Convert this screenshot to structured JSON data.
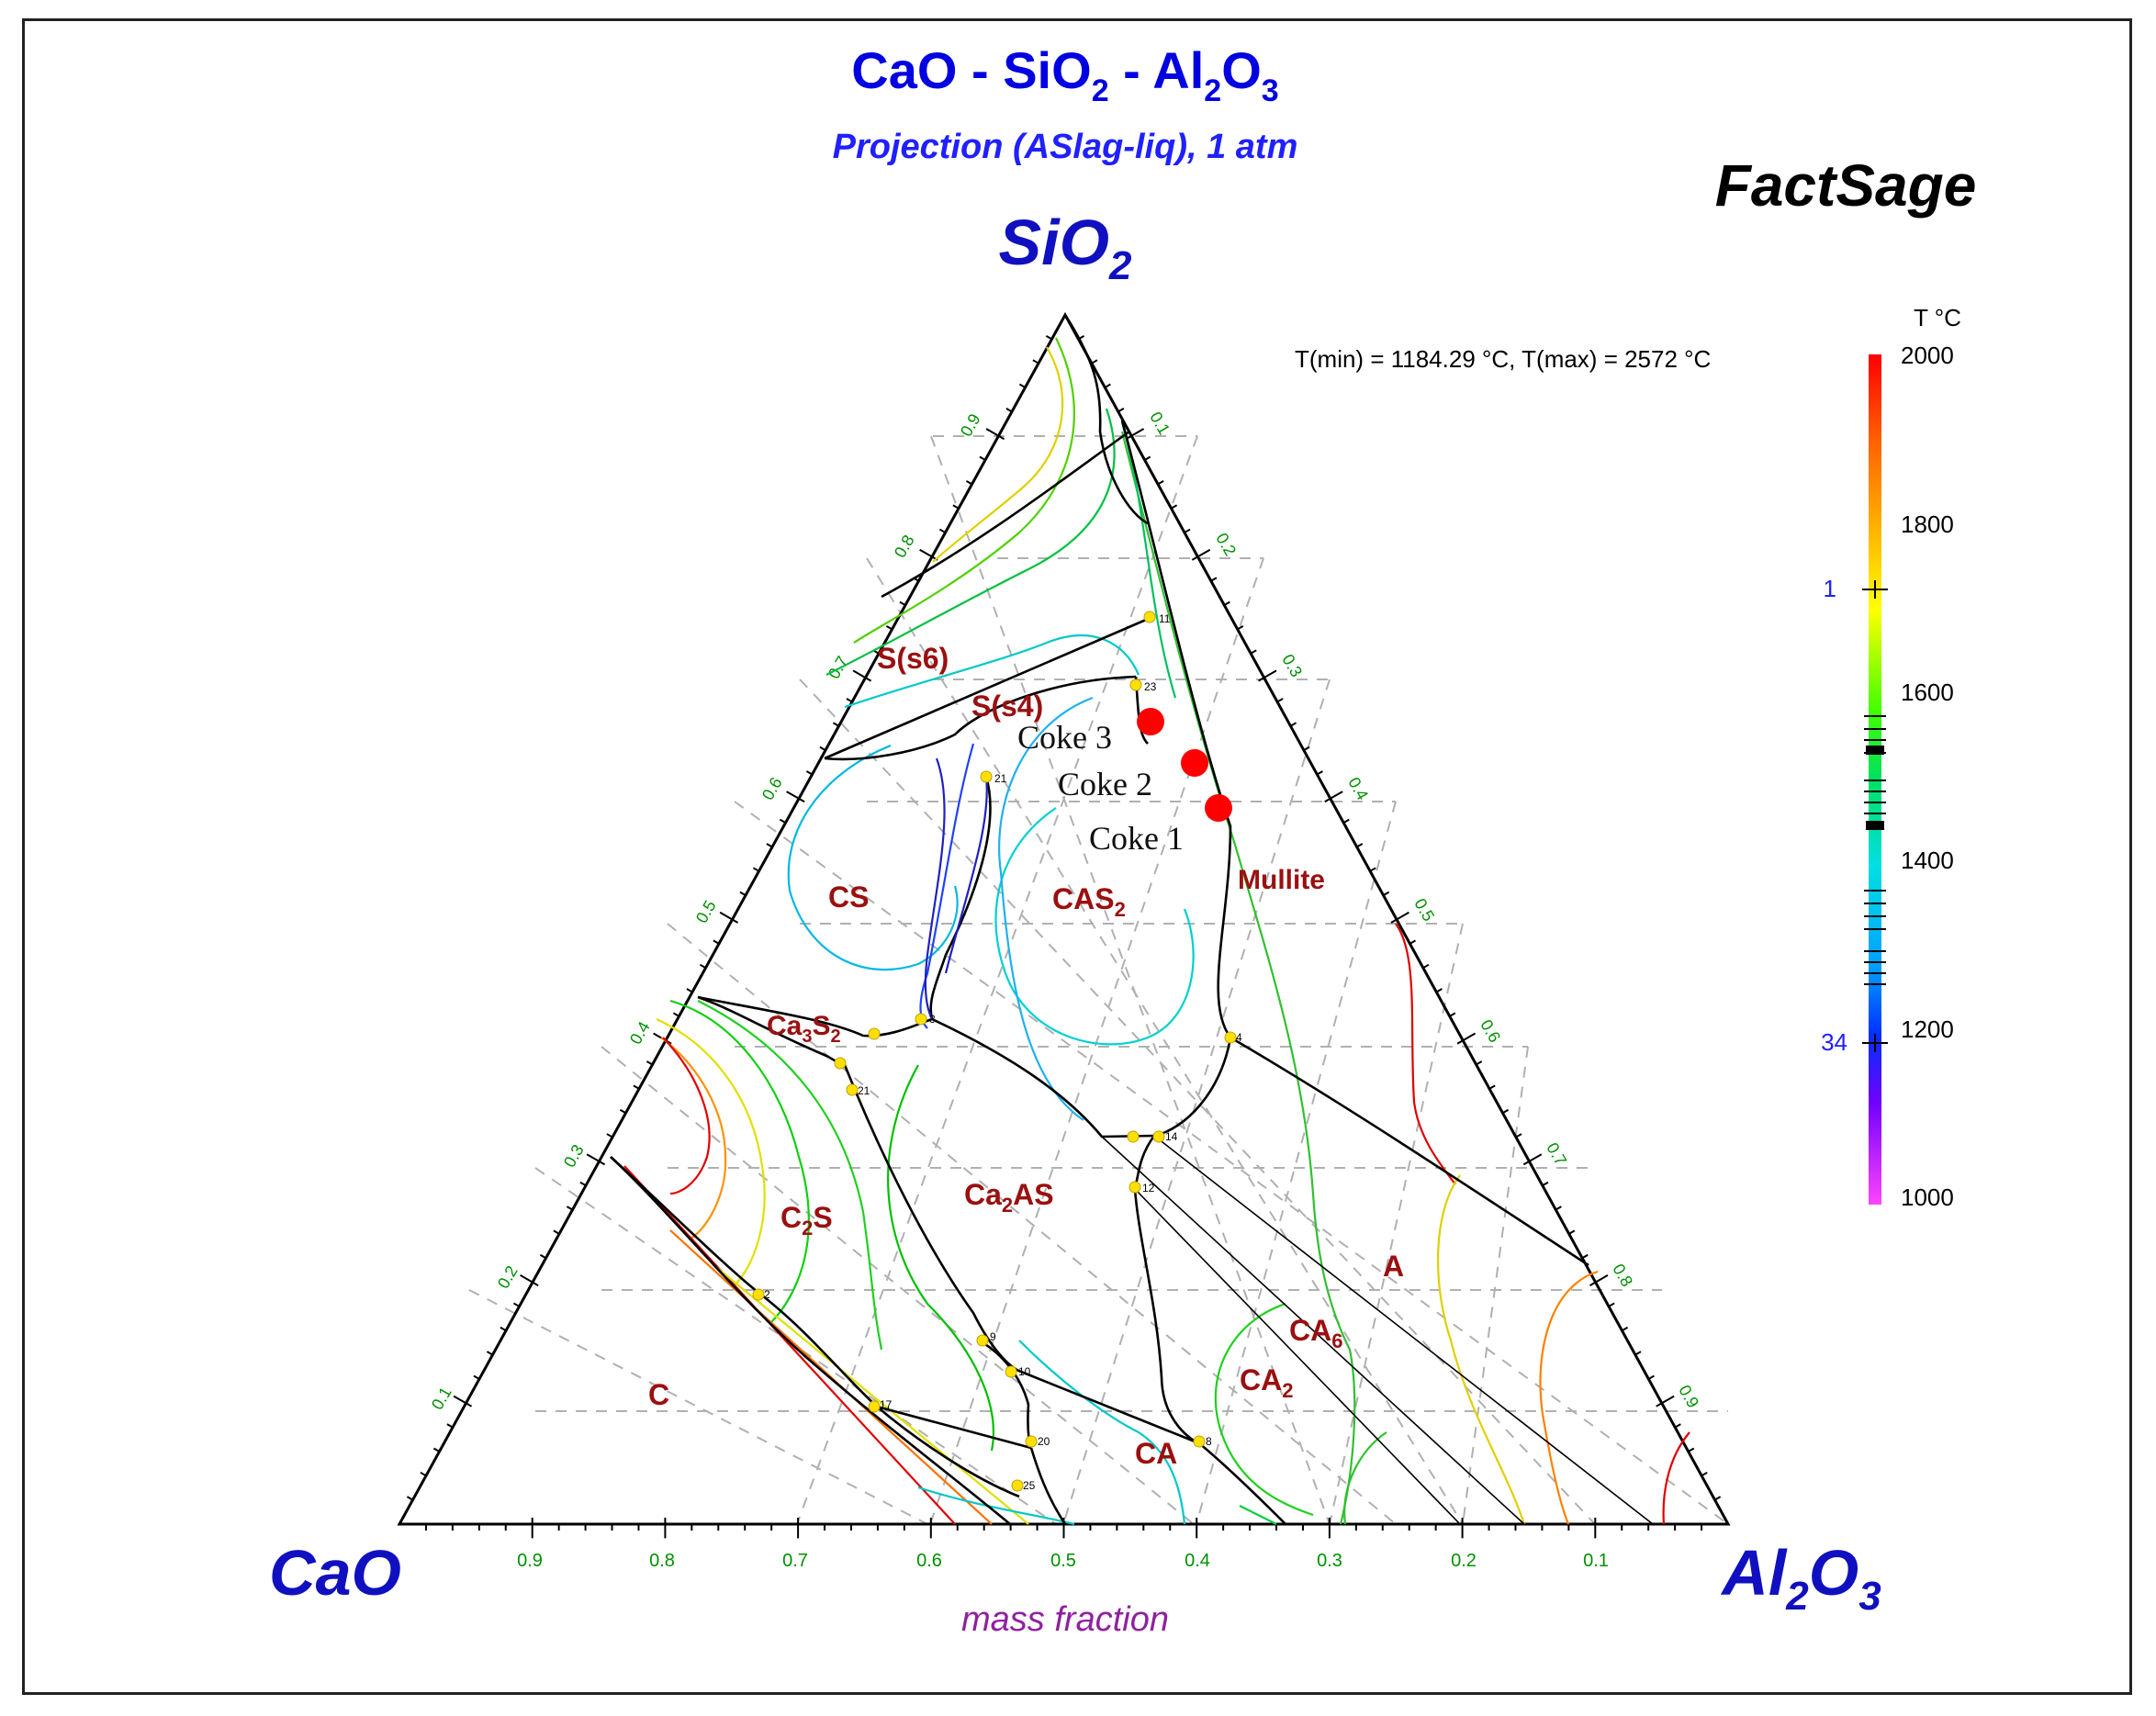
{
  "title": {
    "a": "CaO - SiO",
    "b": "2",
    "c": " - Al",
    "d": "2",
    "e": "O",
    "f": "3"
  },
  "subtitle": "Projection (ASlag-liq),  1 atm",
  "brand": "FactSage",
  "tminmax": "T(min) = 1184.29 °C, T(max) = 2572 °C",
  "vertices": {
    "sio2": {
      "main": "SiO",
      "sub": "2"
    },
    "cao": {
      "main": "CaO"
    },
    "al2o3": {
      "a": "Al",
      "b": "2",
      "c": "O",
      "d": "3"
    }
  },
  "xlabel": "mass fraction",
  "bottom_ticks": [
    "0.9",
    "0.8",
    "0.7",
    "0.6",
    "0.5",
    "0.4",
    "0.3",
    "0.2",
    "0.1"
  ],
  "left_ticks": [
    "0.9",
    "0.8",
    "0.7",
    "0.6",
    "0.5",
    "0.4",
    "0.3",
    "0.2",
    "0.1"
  ],
  "right_ticks": [
    "0.1",
    "0.2",
    "0.3",
    "0.4",
    "0.5",
    "0.6",
    "0.7",
    "0.8",
    "0.9"
  ],
  "colorbar": {
    "title": "T °C",
    "ticks": [
      "2000",
      "1800",
      "1600",
      "1400",
      "1200",
      "1000"
    ],
    "marker_top": "1",
    "marker_bottom": "34",
    "colors": [
      "#ff0000",
      "#ff5a00",
      "#ff9900",
      "#ffd200",
      "#e8ff00",
      "#80ff00",
      "#00e000",
      "#00e08a",
      "#00d8d8",
      "#00a8ff",
      "#0050ff",
      "#3000ff",
      "#8000ff",
      "#c000ff",
      "#ff40ff"
    ]
  },
  "regions": {
    "s6": "S(s6)",
    "s4": "S(s4)",
    "cs": "CS",
    "cas2": {
      "main": "CAS",
      "sub": "2"
    },
    "mullite": "Mullite",
    "ca3s2": {
      "a": "Ca",
      "b": "3",
      "c": "S",
      "d": "2"
    },
    "c2s": {
      "main": "C",
      "sub": "2",
      "tail": "S"
    },
    "ca2as": {
      "a": "Ca",
      "b": "2",
      "c": "AS"
    },
    "a": "A",
    "ca6": {
      "main": "CA",
      "sub": "6"
    },
    "ca2": {
      "main": "CA",
      "sub": "2"
    },
    "ca": "CA",
    "c": "C"
  },
  "samples": [
    {
      "name": "Coke 3",
      "label": "Coke 3"
    },
    {
      "name": "Coke 2",
      "label": "Coke 2"
    },
    {
      "name": "Coke 1",
      "label": "Coke 1"
    }
  ],
  "point_labels": [
    "11",
    "23",
    "21",
    "3",
    "14",
    "4",
    "21",
    "2",
    "12",
    "9",
    "10",
    "17",
    "20",
    "25",
    "8"
  ]
}
